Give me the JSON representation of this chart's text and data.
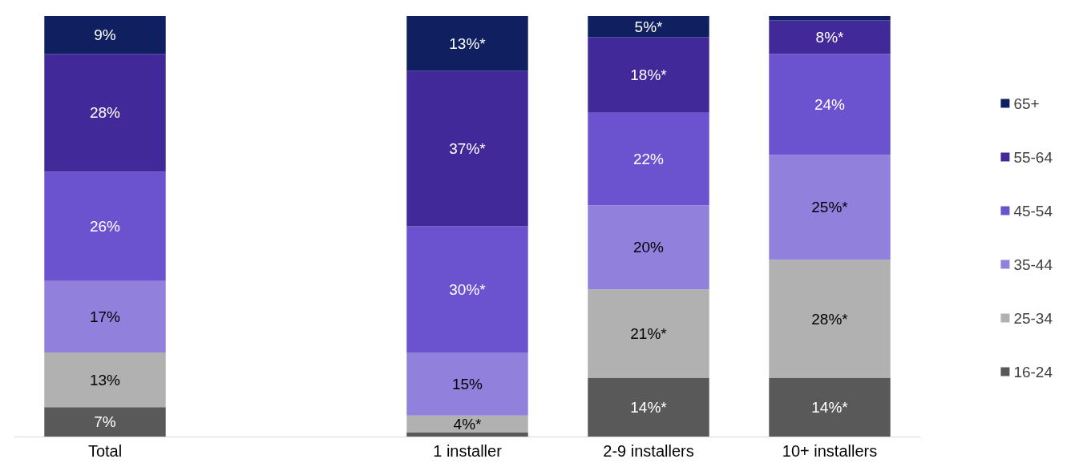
{
  "chart_data": {
    "type": "bar",
    "stacked": true,
    "categories": [
      "Total",
      null,
      "1 installer",
      "2-9 installers",
      "10+ installers"
    ],
    "legend": "right",
    "data_labels": false,
    "series": [
      {
        "name": "16-24",
        "color": "#595959",
        "values": [
          7,
          null,
          1,
          14,
          14
        ],
        "value_labels": [
          "7%",
          null,
          null,
          "14%*",
          "14%*"
        ]
      },
      {
        "name": "25-34",
        "color": "#b1b1b1",
        "values": [
          13,
          null,
          4,
          21,
          28
        ],
        "value_labels": [
          "13%",
          null,
          "4%*",
          "21%*",
          "28%*"
        ]
      },
      {
        "name": "35-44",
        "color": "#9180dc",
        "values": [
          17,
          null,
          15,
          20,
          25
        ],
        "value_labels": [
          "17%",
          null,
          "15%",
          "20%",
          "25%*"
        ]
      },
      {
        "name": "45-54",
        "color": "#6b52cf",
        "values": [
          26,
          null,
          30,
          22,
          24
        ],
        "value_labels": [
          "26%",
          null,
          "30%*",
          "22%",
          "24%"
        ]
      },
      {
        "name": "55-64",
        "color": "#41299a",
        "values": [
          28,
          null,
          37,
          18,
          8
        ],
        "value_labels": [
          "28%",
          null,
          "37%*",
          "18%*",
          "8%*"
        ]
      },
      {
        "name": "65+",
        "color": "#0f1f5f",
        "values": [
          9,
          null,
          13,
          5,
          1
        ],
        "value_labels": [
          "9%",
          null,
          "13%*",
          "5%*",
          null
        ]
      }
    ]
  }
}
